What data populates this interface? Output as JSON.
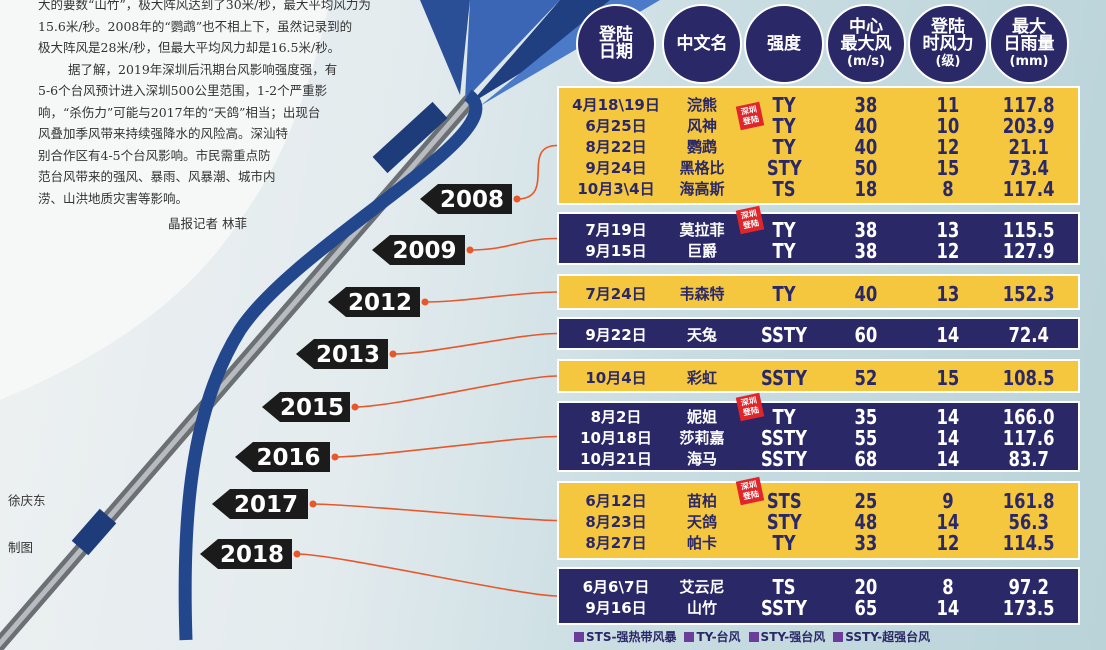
{
  "article": {
    "lines": [
      "大的要数“山竹”，极大阵风达到了30米/秒，最大平均风力为",
      "15.6米/秒。2008年的“鹦鹉”也不相上下，虽然记录到的",
      "极大阵风是28米/秒，但最大平均风力却是16.5米/秒。",
      "据了解，2019年深圳后汛期台风影响强度强，有",
      "5-6个台风预计进入深圳500公里范围，1-2个严重影",
      "响，“杀伤力”可能与2017年的“天鸽”相当；出现台",
      "风叠加季风带来持续强降水的风险高。深汕特",
      "别合作区有4-5个台风影响。市民需重点防",
      "范台风带来的强风、暴雨、风暴潮、城市内",
      "涝、山洪地质灾害等影响。"
    ],
    "byline": "晶报记者 林菲"
  },
  "credits": [
    "徐庆东",
    "制图"
  ],
  "table": {
    "headers": [
      [
        "登陆",
        "日期"
      ],
      [
        "中文名"
      ],
      [
        "强度"
      ],
      [
        "中心",
        "最大风",
        "(m/s)"
      ],
      [
        "登陆",
        "时风力",
        "(级)"
      ],
      [
        "最大",
        "日雨量",
        "(mm)"
      ]
    ],
    "groups": [
      {
        "year": "2008",
        "rows": [
          {
            "date": "4月18\\19日",
            "name": "浣熊",
            "strength": "TY",
            "max_wind": "38",
            "landfall_force": "11",
            "max_rain": "117.8"
          },
          {
            "date": "6月25日",
            "name": "风神",
            "strength": "TY",
            "max_wind": "40",
            "landfall_force": "10",
            "max_rain": "203.9",
            "stamp": "深圳登陆"
          },
          {
            "date": "8月22日",
            "name": "鹦鹉",
            "strength": "TY",
            "max_wind": "40",
            "landfall_force": "12",
            "max_rain": "21.1"
          },
          {
            "date": "9月24日",
            "name": "黑格比",
            "strength": "STY",
            "max_wind": "50",
            "landfall_force": "15",
            "max_rain": "73.4"
          },
          {
            "date": "10月3\\4日",
            "name": "海高斯",
            "strength": "TS",
            "max_wind": "18",
            "landfall_force": "8",
            "max_rain": "117.4"
          }
        ]
      },
      {
        "year": "2009",
        "rows": [
          {
            "date": "7月19日",
            "name": "莫拉菲",
            "strength": "TY",
            "max_wind": "38",
            "landfall_force": "13",
            "max_rain": "115.5",
            "stamp": "深圳登陆"
          },
          {
            "date": "9月15日",
            "name": "巨爵",
            "strength": "TY",
            "max_wind": "38",
            "landfall_force": "12",
            "max_rain": "127.9"
          }
        ]
      },
      {
        "year": "2012",
        "rows": [
          {
            "date": "7月24日",
            "name": "韦森特",
            "strength": "TY",
            "max_wind": "40",
            "landfall_force": "13",
            "max_rain": "152.3"
          }
        ]
      },
      {
        "year": "2013",
        "rows": [
          {
            "date": "9月22日",
            "name": "天兔",
            "strength": "SSTY",
            "max_wind": "60",
            "landfall_force": "14",
            "max_rain": "72.4"
          }
        ]
      },
      {
        "year": "2015",
        "rows": [
          {
            "date": "10月4日",
            "name": "彩虹",
            "strength": "SSTY",
            "max_wind": "52",
            "landfall_force": "15",
            "max_rain": "108.5"
          }
        ]
      },
      {
        "year": "2016",
        "rows": [
          {
            "date": "8月2日",
            "name": "妮姐",
            "strength": "TY",
            "max_wind": "35",
            "landfall_force": "14",
            "max_rain": "166.0",
            "stamp": "深圳登陆"
          },
          {
            "date": "10月18日",
            "name": "莎莉嘉",
            "strength": "SSTY",
            "max_wind": "55",
            "landfall_force": "14",
            "max_rain": "117.6"
          },
          {
            "date": "10月21日",
            "name": "海马",
            "strength": "SSTY",
            "max_wind": "68",
            "landfall_force": "14",
            "max_rain": "83.7"
          }
        ]
      },
      {
        "year": "2017",
        "rows": [
          {
            "date": "6月12日",
            "name": "苗柏",
            "strength": "STS",
            "max_wind": "25",
            "landfall_force": "9",
            "max_rain": "161.8",
            "stamp": "深圳登陆"
          },
          {
            "date": "8月23日",
            "name": "天鸽",
            "strength": "STY",
            "max_wind": "48",
            "landfall_force": "14",
            "max_rain": "56.3"
          },
          {
            "date": "8月27日",
            "name": "帕卡",
            "strength": "TY",
            "max_wind": "33",
            "landfall_force": "12",
            "max_rain": "114.5"
          }
        ]
      },
      {
        "year": "2018",
        "rows": [
          {
            "date": "6月6\\7日",
            "name": "艾云尼",
            "strength": "TS",
            "max_wind": "20",
            "landfall_force": "8",
            "max_rain": "97.2"
          },
          {
            "date": "9月16日",
            "name": "山竹",
            "strength": "SSTY",
            "max_wind": "65",
            "landfall_force": "14",
            "max_rain": "173.5"
          }
        ]
      }
    ]
  },
  "legend": [
    "STS-强热带风暴",
    "TY-台风",
    "STY-强台风",
    "SSTY-超强台风"
  ]
}
